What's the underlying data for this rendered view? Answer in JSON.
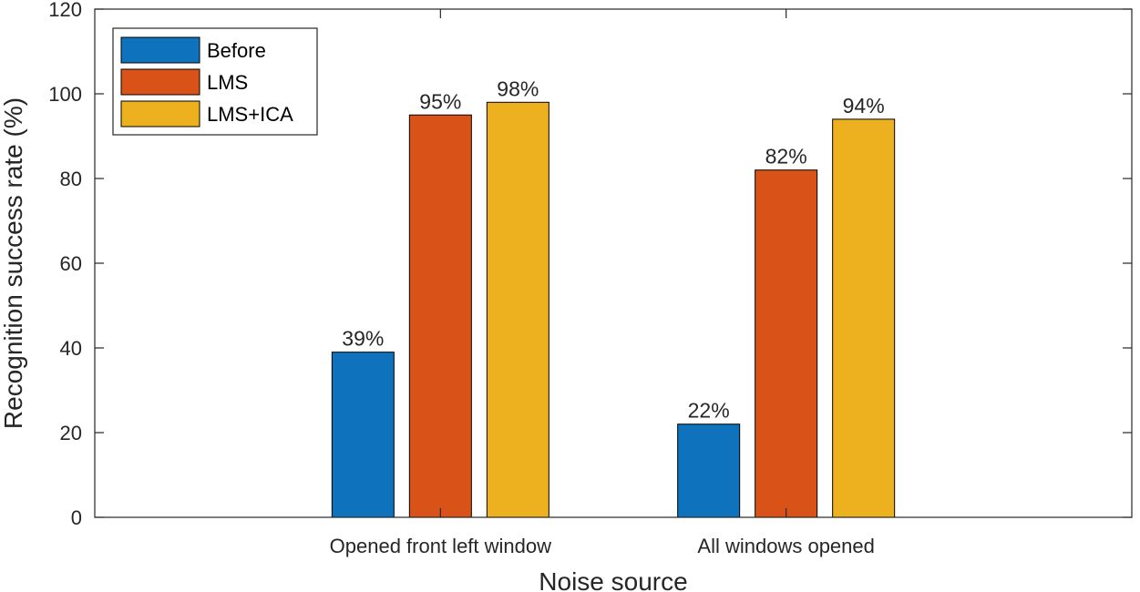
{
  "chart_data": {
    "type": "bar",
    "title": "",
    "xlabel": "Noise source",
    "ylabel": "Recognition success rate (%)",
    "categories": [
      "Opened front left window",
      "All windows opened"
    ],
    "series": [
      {
        "name": "Before",
        "values": [
          39,
          22
        ],
        "labels": [
          "39%",
          "22%"
        ]
      },
      {
        "name": "LMS",
        "values": [
          95,
          82
        ],
        "labels": [
          "95%",
          "82%"
        ]
      },
      {
        "name": "LMS+ICA",
        "values": [
          98,
          94
        ],
        "labels": [
          "98%",
          "94%"
        ]
      }
    ],
    "ylim": [
      0,
      120
    ],
    "yticks": [
      0,
      20,
      40,
      60,
      80,
      100,
      120
    ],
    "grid": false,
    "legend_position": "top-left",
    "colors": {
      "Before": "#0f72bd",
      "LMS": "#d95319",
      "LMS+ICA": "#edb120",
      "axis": "#262626"
    }
  }
}
